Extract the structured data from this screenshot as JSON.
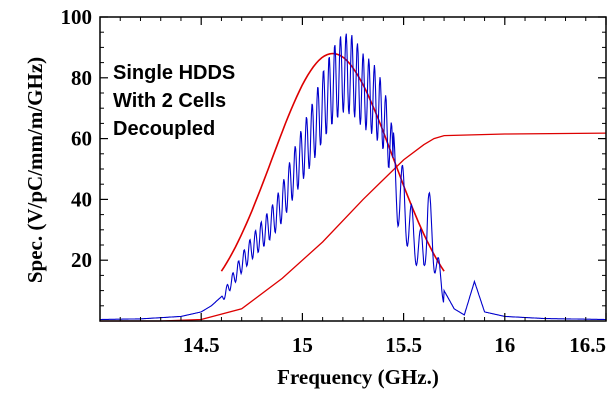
{
  "chart_data": {
    "type": "line",
    "title": "",
    "xlabel": "Frequency (GHz.)",
    "ylabel": "Spec. (V/pC/mm/m/GHz)",
    "xlim": [
      14.0,
      16.5
    ],
    "ylim": [
      0,
      100
    ],
    "x_ticks": [
      14.5,
      15,
      15.5,
      16,
      16.5
    ],
    "x_tick_labels": [
      "14.5",
      "15",
      "15.5",
      "16",
      "16.5"
    ],
    "y_ticks": [
      20,
      40,
      60,
      80,
      100
    ],
    "y_tick_labels": [
      "20",
      "40",
      "60",
      "80",
      "100"
    ],
    "annotations": [
      "Single HDDS",
      "With 2 Cells",
      "Decoupled"
    ],
    "colors": {
      "spectrum": "#0000cc",
      "fit": "#dd0000",
      "cumulative": "#dd0000",
      "frame": "#000000"
    },
    "series": [
      {
        "key": "spectrum",
        "x": [
          14.0,
          14.2,
          14.4,
          14.5,
          14.55,
          14.6,
          14.65,
          14.7,
          14.75,
          14.8,
          14.85,
          14.9,
          14.95,
          15.0,
          15.05,
          15.1,
          15.15,
          15.2,
          15.25,
          15.3,
          15.35,
          15.4,
          15.45,
          15.5,
          15.55,
          15.6,
          15.62,
          15.65,
          15.7,
          15.75,
          15.8,
          15.85,
          15.9,
          16.0,
          16.2,
          16.5
        ],
        "y": [
          0.5,
          0.7,
          1.5,
          3,
          5,
          8,
          15,
          22,
          28,
          33,
          38,
          45,
          55,
          64,
          72,
          82,
          90,
          95,
          94,
          88,
          85,
          78,
          62,
          50,
          35,
          28,
          47,
          30,
          10,
          4,
          2,
          13,
          3,
          1.5,
          0.8,
          0.5
        ]
      },
      {
        "key": "fit",
        "center": 15.15,
        "peak": 88,
        "sigma": 0.3,
        "x_range": [
          14.6,
          15.7
        ]
      },
      {
        "key": "cumulative",
        "x": [
          14.0,
          14.3,
          14.5,
          14.7,
          14.9,
          15.1,
          15.3,
          15.5,
          15.6,
          15.65,
          15.7,
          16.0,
          16.5
        ],
        "y": [
          0,
          0,
          0.5,
          4,
          14,
          26,
          40,
          53,
          58,
          60,
          61,
          61.5,
          61.8
        ]
      }
    ]
  }
}
